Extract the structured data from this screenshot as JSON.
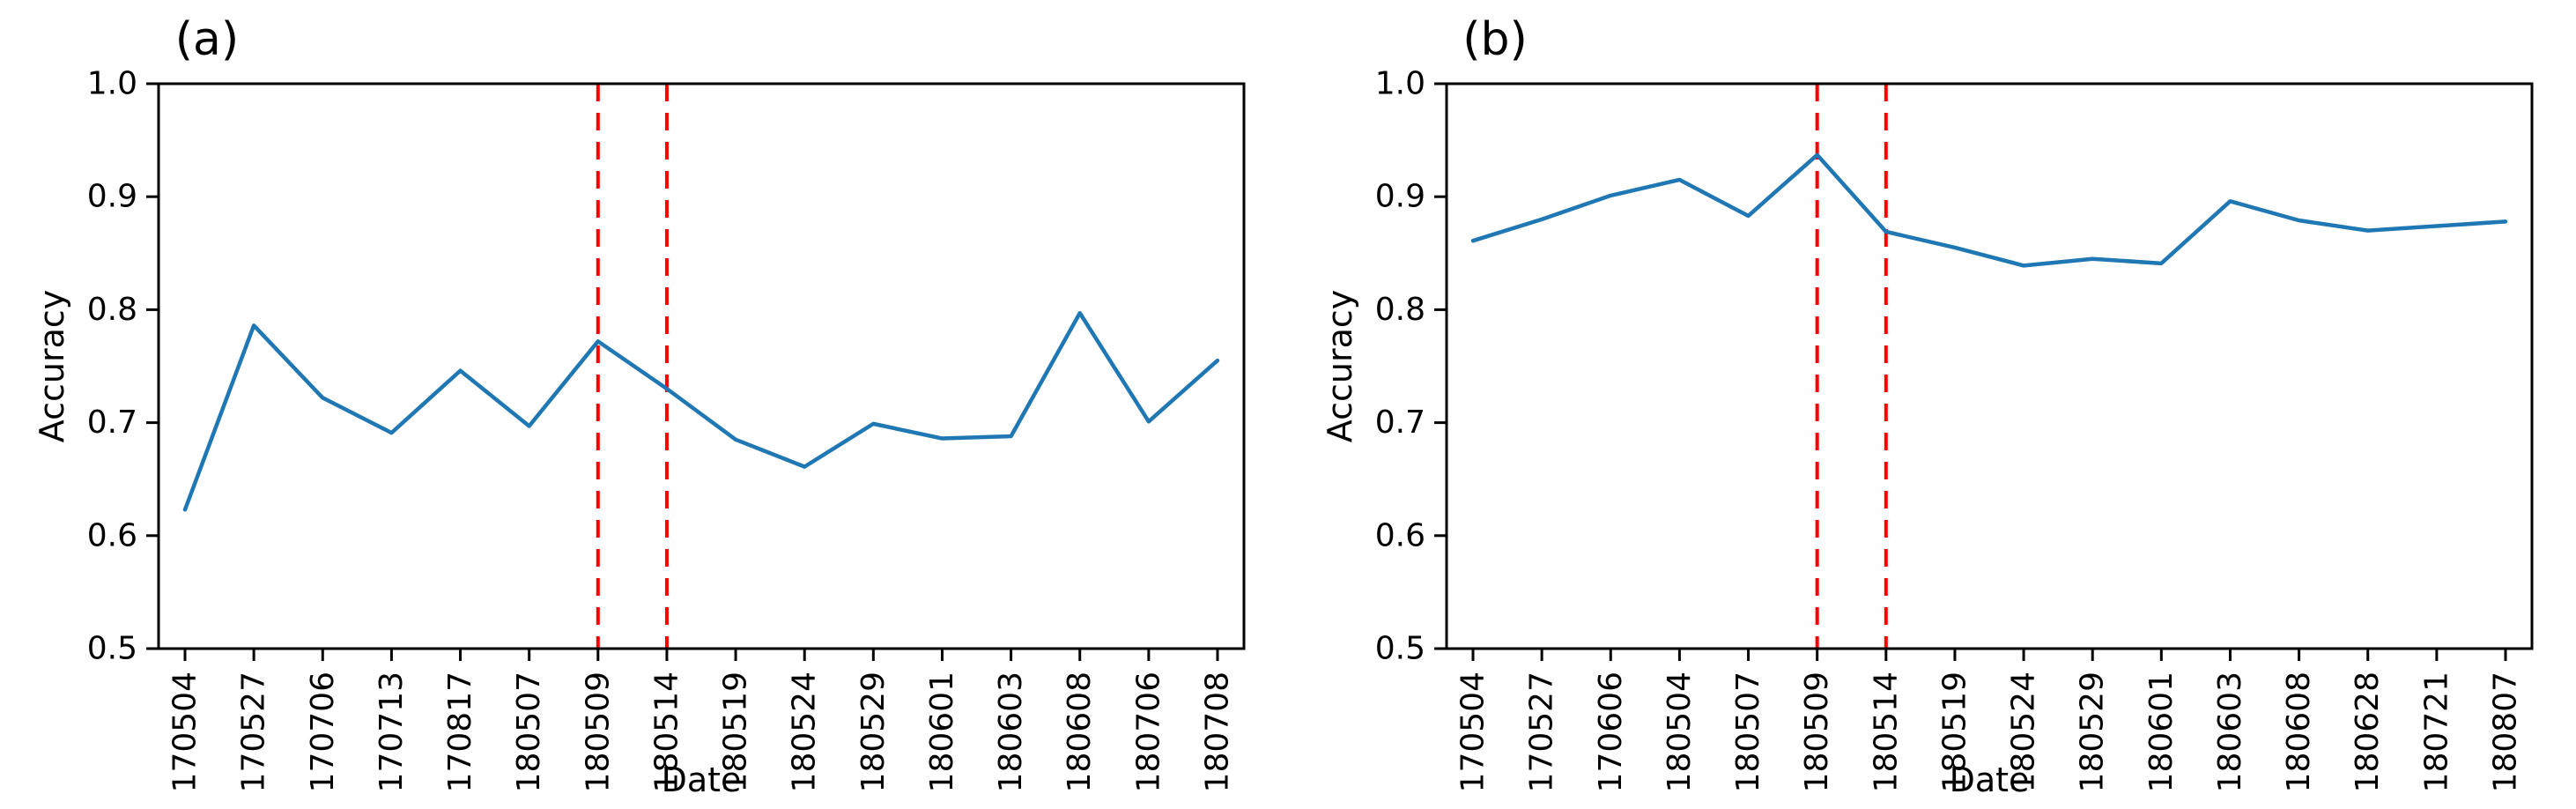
{
  "figure": {
    "background_color": "#ffffff",
    "text_color": "#000000",
    "spine_color": "#000000"
  },
  "chart_data": [
    {
      "type": "line",
      "panel": "left",
      "title": "(a)",
      "xlabel": "Date",
      "ylabel": "Accuracy",
      "ylim": [
        0.5,
        1.0
      ],
      "ytick_labels": [
        "0.5",
        "0.6",
        "0.7",
        "0.8",
        "0.9",
        "1.0"
      ],
      "yticks": [
        0.5,
        0.6,
        0.7,
        0.8,
        0.9,
        1.0
      ],
      "grid": false,
      "legend": "none",
      "line_color": "#1f77b4",
      "categories": [
        "170504",
        "170527",
        "170706",
        "170713",
        "170817",
        "180507",
        "180509",
        "180514",
        "180519",
        "180524",
        "180529",
        "180601",
        "180603",
        "180608",
        "180706",
        "180708"
      ],
      "values": [
        0.623,
        0.786,
        0.722,
        0.691,
        0.746,
        0.697,
        0.772,
        0.73,
        0.685,
        0.661,
        0.699,
        0.686,
        0.688,
        0.797,
        0.701,
        0.755
      ],
      "vlines": {
        "categories": [
          "180509",
          "180514"
        ],
        "indices": [
          6,
          7
        ],
        "color": "#ff0000",
        "style": "dashed"
      }
    },
    {
      "type": "line",
      "panel": "right",
      "title": "(b)",
      "xlabel": "Date",
      "ylabel": "Accuracy",
      "ylim": [
        0.5,
        1.0
      ],
      "ytick_labels": [
        "0.5",
        "0.6",
        "0.7",
        "0.8",
        "0.9",
        "1.0"
      ],
      "yticks": [
        0.5,
        0.6,
        0.7,
        0.8,
        0.9,
        1.0
      ],
      "grid": false,
      "legend": "none",
      "line_color": "#1f77b4",
      "categories": [
        "170504",
        "170527",
        "170606",
        "180504",
        "180507",
        "180509",
        "180514",
        "180519",
        "180524",
        "180529",
        "180601",
        "180603",
        "180608",
        "180628",
        "180721",
        "180807"
      ],
      "values": [
        0.861,
        0.88,
        0.901,
        0.915,
        0.883,
        0.937,
        0.869,
        0.855,
        0.839,
        0.845,
        0.841,
        0.896,
        0.879,
        0.87,
        0.874,
        0.878
      ],
      "vlines": {
        "categories": [
          "180509",
          "180514"
        ],
        "indices": [
          5,
          6
        ],
        "color": "#ff0000",
        "style": "dashed"
      }
    }
  ]
}
